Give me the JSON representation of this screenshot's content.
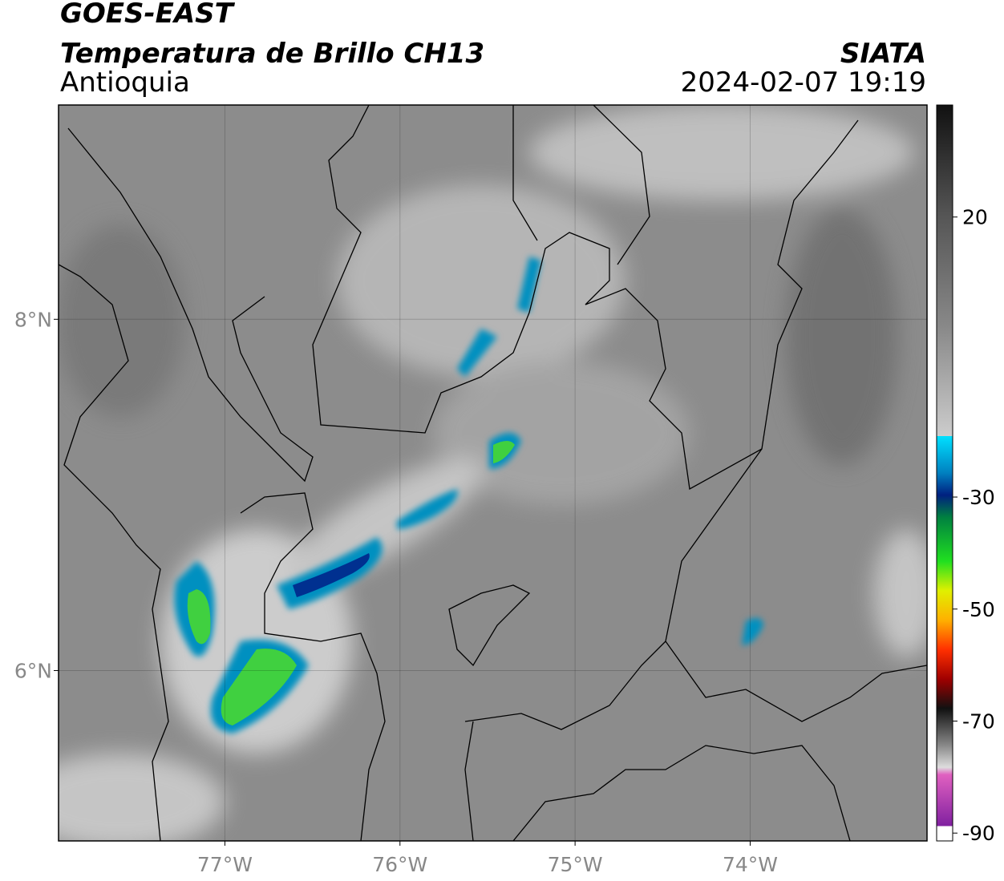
{
  "header": {
    "satellite": "GOES-EAST",
    "product": "Temperatura de Brillo CH13",
    "source": "SIATA",
    "region": "Antioquia",
    "datetime": "2024-02-07 19:19"
  },
  "map": {
    "lonlim": [
      -77.95,
      -72.99
    ],
    "latlim": [
      5.03,
      9.22
    ],
    "lonticks": [
      {
        "value": -77,
        "label": "77°W"
      },
      {
        "value": -76,
        "label": "76°W"
      },
      {
        "value": -75,
        "label": "75°W"
      },
      {
        "value": -74,
        "label": "74°W"
      }
    ],
    "latticks": [
      {
        "value": 8,
        "label": "8°N"
      },
      {
        "value": 6,
        "label": "6°N"
      }
    ]
  },
  "colorbar": {
    "lim": [
      -91.4,
      40
    ],
    "ticks": [
      20,
      -30,
      -50,
      -70,
      -90
    ]
  }
}
